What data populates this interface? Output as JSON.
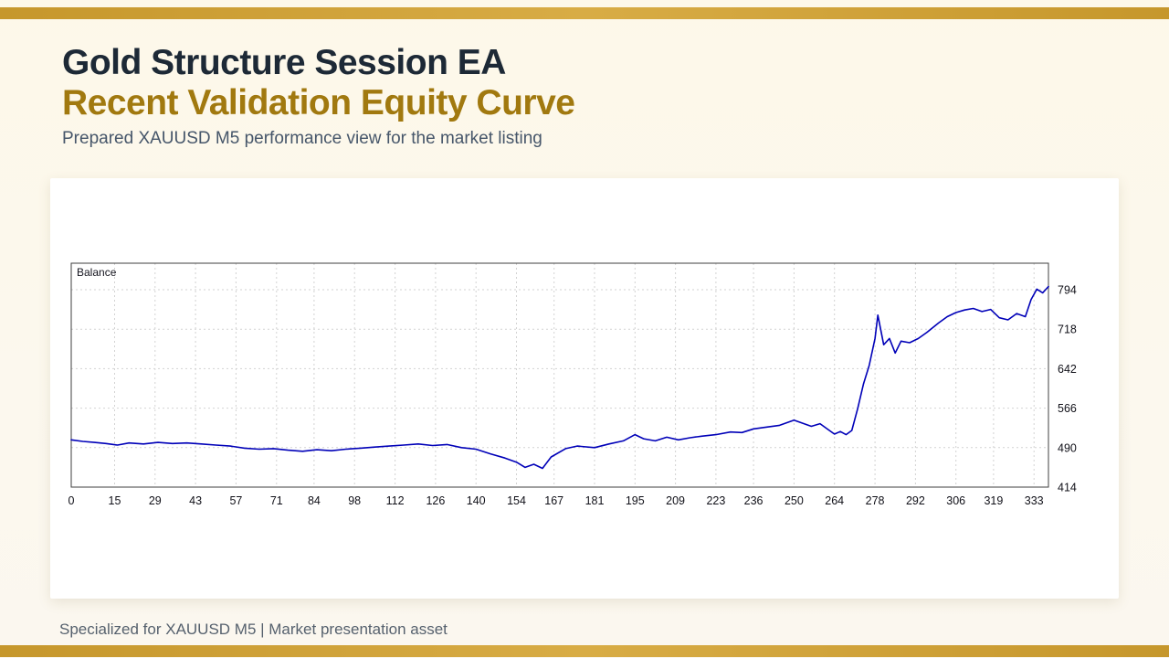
{
  "page": {
    "title": "Gold Structure Session EA",
    "subtitle": "Recent Validation Equity Curve",
    "description": "Prepared XAUUSD M5 performance view for the market listing",
    "footer": "Specialized for XAUUSD M5 | Market presentation asset"
  },
  "colors": {
    "accent_gold": "#c6972c",
    "title_navy": "#1d2936",
    "subtitle_gold": "#a1790f",
    "line_blue": "#0000b8"
  },
  "chart_data": {
    "type": "line",
    "title": "Balance",
    "legend_label": "Balance",
    "line_color": "#0000b8",
    "grid": true,
    "legend_position": "top-left",
    "y_axis_side": "right",
    "xlim": [
      0,
      338
    ],
    "ylim": [
      414,
      845
    ],
    "x_ticks": [
      0,
      15,
      29,
      43,
      57,
      71,
      84,
      98,
      112,
      126,
      140,
      154,
      167,
      181,
      195,
      209,
      223,
      236,
      250,
      264,
      278,
      292,
      306,
      319,
      333
    ],
    "y_ticks": [
      414,
      490,
      566,
      642,
      718,
      794
    ],
    "series": [
      {
        "name": "Balance",
        "points": [
          [
            0,
            505
          ],
          [
            4,
            502
          ],
          [
            8,
            500
          ],
          [
            12,
            498
          ],
          [
            16,
            495
          ],
          [
            20,
            499
          ],
          [
            25,
            497
          ],
          [
            30,
            500
          ],
          [
            35,
            498
          ],
          [
            40,
            499
          ],
          [
            45,
            497
          ],
          [
            50,
            495
          ],
          [
            55,
            493
          ],
          [
            60,
            489
          ],
          [
            65,
            487
          ],
          [
            70,
            488
          ],
          [
            75,
            485
          ],
          [
            80,
            483
          ],
          [
            85,
            486
          ],
          [
            90,
            484
          ],
          [
            95,
            487
          ],
          [
            100,
            489
          ],
          [
            105,
            491
          ],
          [
            110,
            493
          ],
          [
            115,
            495
          ],
          [
            120,
            497
          ],
          [
            125,
            494
          ],
          [
            130,
            496
          ],
          [
            135,
            490
          ],
          [
            140,
            487
          ],
          [
            145,
            478
          ],
          [
            150,
            470
          ],
          [
            154,
            462
          ],
          [
            157,
            452
          ],
          [
            160,
            458
          ],
          [
            163,
            450
          ],
          [
            166,
            472
          ],
          [
            171,
            488
          ],
          [
            175,
            493
          ],
          [
            181,
            490
          ],
          [
            186,
            497
          ],
          [
            191,
            503
          ],
          [
            195,
            515
          ],
          [
            198,
            507
          ],
          [
            202,
            503
          ],
          [
            206,
            510
          ],
          [
            210,
            505
          ],
          [
            214,
            509
          ],
          [
            218,
            512
          ],
          [
            223,
            515
          ],
          [
            228,
            520
          ],
          [
            232,
            519
          ],
          [
            236,
            526
          ],
          [
            240,
            529
          ],
          [
            245,
            533
          ],
          [
            250,
            543
          ],
          [
            253,
            537
          ],
          [
            256,
            531
          ],
          [
            259,
            536
          ],
          [
            262,
            524
          ],
          [
            264,
            516
          ],
          [
            266,
            521
          ],
          [
            268,
            515
          ],
          [
            270,
            523
          ],
          [
            272,
            565
          ],
          [
            274,
            612
          ],
          [
            276,
            648
          ],
          [
            278,
            700
          ],
          [
            279,
            745
          ],
          [
            281,
            688
          ],
          [
            283,
            700
          ],
          [
            285,
            672
          ],
          [
            287,
            695
          ],
          [
            290,
            692
          ],
          [
            293,
            700
          ],
          [
            296,
            712
          ],
          [
            300,
            730
          ],
          [
            303,
            742
          ],
          [
            306,
            750
          ],
          [
            309,
            755
          ],
          [
            312,
            758
          ],
          [
            315,
            752
          ],
          [
            318,
            756
          ],
          [
            321,
            740
          ],
          [
            324,
            736
          ],
          [
            327,
            748
          ],
          [
            330,
            742
          ],
          [
            332,
            775
          ],
          [
            334,
            795
          ],
          [
            336,
            788
          ],
          [
            338,
            800
          ]
        ]
      }
    ]
  }
}
